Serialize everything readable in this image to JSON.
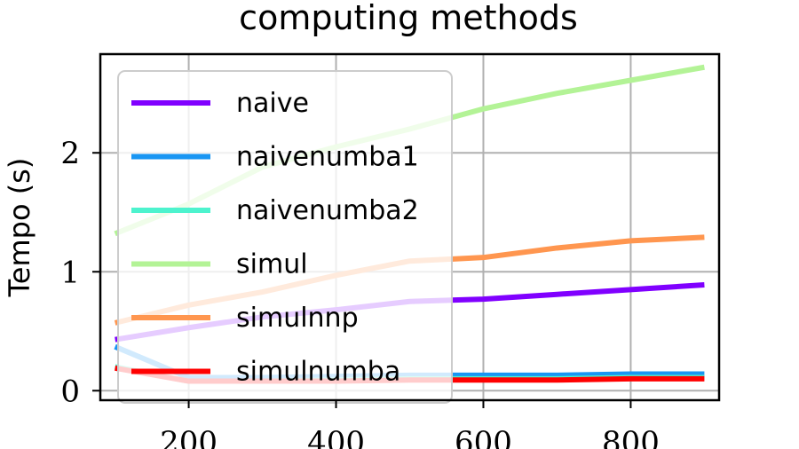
{
  "chart_data": {
    "type": "line",
    "title": "computing methods",
    "xlabel": "",
    "ylabel": "Tempo (s)",
    "xlim": [
      80,
      920
    ],
    "ylim": [
      -0.08,
      2.83
    ],
    "xticks": [
      200,
      400,
      600,
      800
    ],
    "yticks": [
      0,
      1,
      2
    ],
    "grid": true,
    "legend_position": "upper-left",
    "series": [
      {
        "name": "naive",
        "color": "#8000ff",
        "x": [
          100,
          200,
          300,
          400,
          500,
          600,
          700,
          800,
          900
        ],
        "y": [
          0.43,
          0.53,
          0.62,
          0.68,
          0.75,
          0.77,
          0.81,
          0.85,
          0.89
        ]
      },
      {
        "name": "naivenumba1",
        "color": "#1996f3",
        "x": [
          100,
          200,
          300,
          400,
          500,
          600,
          700,
          800,
          900
        ],
        "y": [
          0.37,
          0.11,
          0.11,
          0.12,
          0.13,
          0.13,
          0.13,
          0.14,
          0.14
        ]
      },
      {
        "name": "naivenumba2",
        "color": "#4df3ce",
        "x": [
          100,
          200,
          300,
          400,
          500,
          600,
          700,
          800,
          900
        ],
        "y": [
          0.2,
          0.08,
          0.08,
          0.09,
          0.1,
          0.1,
          0.1,
          0.11,
          0.11
        ]
      },
      {
        "name": "simul",
        "color": "#b3f396",
        "x": [
          100,
          200,
          300,
          400,
          500,
          600,
          700,
          800,
          900
        ],
        "y": [
          1.32,
          1.57,
          1.88,
          2.05,
          2.2,
          2.37,
          2.5,
          2.61,
          2.72
        ]
      },
      {
        "name": "simulnnp",
        "color": "#ff964f",
        "x": [
          100,
          200,
          300,
          400,
          500,
          600,
          700,
          800,
          900
        ],
        "y": [
          0.57,
          0.72,
          0.83,
          0.97,
          1.09,
          1.12,
          1.2,
          1.26,
          1.29
        ]
      },
      {
        "name": "simulnumba",
        "color": "#ff0000",
        "x": [
          100,
          200,
          300,
          400,
          500,
          600,
          700,
          800,
          900
        ],
        "y": [
          0.19,
          0.08,
          0.08,
          0.08,
          0.09,
          0.09,
          0.09,
          0.1,
          0.1
        ]
      }
    ]
  }
}
